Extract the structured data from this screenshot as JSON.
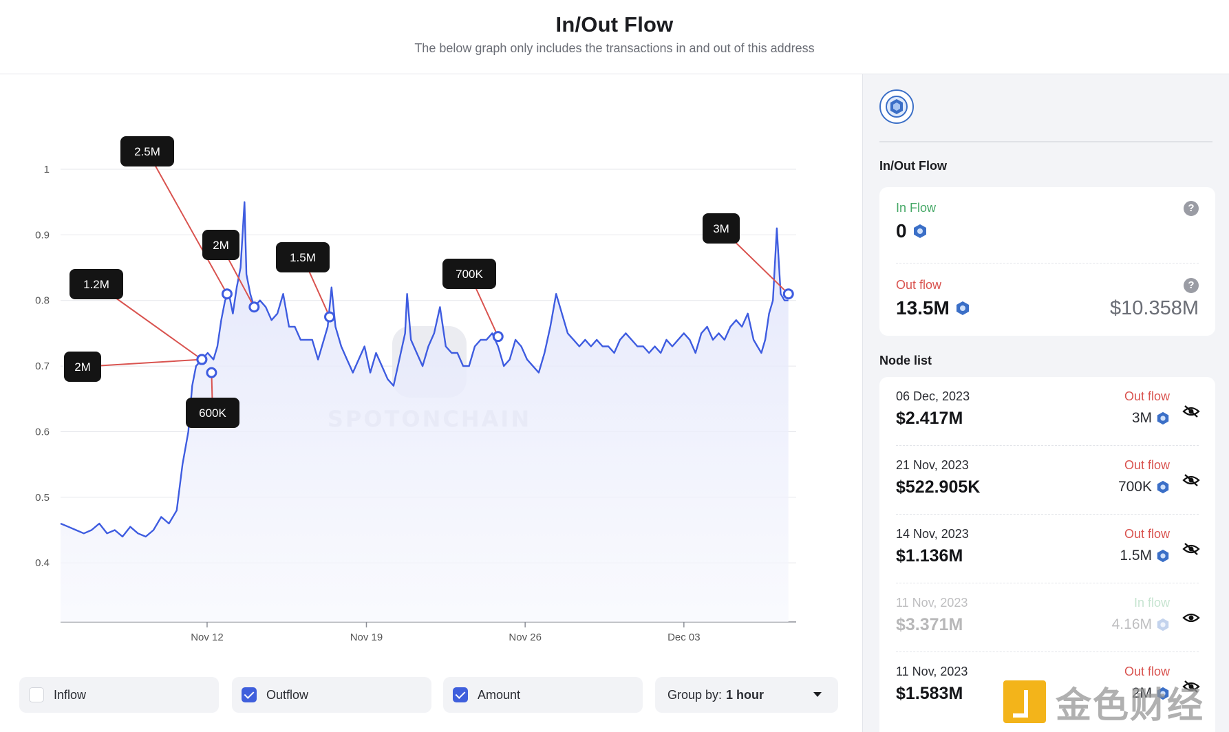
{
  "header": {
    "title": "In/Out Flow",
    "subtitle": "The below graph only includes the transactions in and out of this address"
  },
  "chart_data": {
    "type": "line",
    "yticks": [
      "1",
      "0.9",
      "0.8",
      "0.7",
      "0.6",
      "0.5",
      "0.4"
    ],
    "ylim": [
      0.31,
      1.0
    ],
    "xticks": [
      "Nov 12",
      "Nov 19",
      "Nov 26",
      "Dec 03"
    ],
    "watermark": "SPOTONCHAIN",
    "series": [
      {
        "points": [
          [
            0,
            0.46
          ],
          [
            0.4,
            0.455
          ],
          [
            0.8,
            0.45
          ],
          [
            1.2,
            0.445
          ],
          [
            1.6,
            0.45
          ],
          [
            2.0,
            0.46
          ],
          [
            2.4,
            0.445
          ],
          [
            2.8,
            0.45
          ],
          [
            3.2,
            0.44
          ],
          [
            3.6,
            0.455
          ],
          [
            4.0,
            0.445
          ],
          [
            4.4,
            0.44
          ],
          [
            4.8,
            0.45
          ],
          [
            5.2,
            0.47
          ],
          [
            5.6,
            0.46
          ],
          [
            6.0,
            0.48
          ],
          [
            6.3,
            0.55
          ],
          [
            6.6,
            0.6
          ],
          [
            6.8,
            0.67
          ],
          [
            7.0,
            0.7
          ],
          [
            7.3,
            0.71
          ],
          [
            7.6,
            0.72
          ],
          [
            7.9,
            0.71
          ],
          [
            8.1,
            0.73
          ],
          [
            8.3,
            0.77
          ],
          [
            8.5,
            0.8
          ],
          [
            8.7,
            0.81
          ],
          [
            8.9,
            0.78
          ],
          [
            9.1,
            0.82
          ],
          [
            9.3,
            0.85
          ],
          [
            9.5,
            0.95
          ],
          [
            9.6,
            0.84
          ],
          [
            9.8,
            0.81
          ],
          [
            10.0,
            0.79
          ],
          [
            10.3,
            0.8
          ],
          [
            10.6,
            0.79
          ],
          [
            10.9,
            0.77
          ],
          [
            11.2,
            0.78
          ],
          [
            11.5,
            0.81
          ],
          [
            11.8,
            0.76
          ],
          [
            12.1,
            0.76
          ],
          [
            12.4,
            0.74
          ],
          [
            12.7,
            0.74
          ],
          [
            13.0,
            0.74
          ],
          [
            13.3,
            0.71
          ],
          [
            13.5,
            0.73
          ],
          [
            13.8,
            0.76
          ],
          [
            14.0,
            0.82
          ],
          [
            14.2,
            0.76
          ],
          [
            14.5,
            0.73
          ],
          [
            14.8,
            0.71
          ],
          [
            15.1,
            0.69
          ],
          [
            15.4,
            0.71
          ],
          [
            15.7,
            0.73
          ],
          [
            16.0,
            0.69
          ],
          [
            16.3,
            0.72
          ],
          [
            16.6,
            0.7
          ],
          [
            16.9,
            0.68
          ],
          [
            17.2,
            0.67
          ],
          [
            17.5,
            0.71
          ],
          [
            17.8,
            0.75
          ],
          [
            17.9,
            0.81
          ],
          [
            18.1,
            0.74
          ],
          [
            18.4,
            0.72
          ],
          [
            18.7,
            0.7
          ],
          [
            19.0,
            0.73
          ],
          [
            19.3,
            0.75
          ],
          [
            19.6,
            0.79
          ],
          [
            19.9,
            0.73
          ],
          [
            20.2,
            0.72
          ],
          [
            20.5,
            0.72
          ],
          [
            20.8,
            0.7
          ],
          [
            21.1,
            0.7
          ],
          [
            21.4,
            0.73
          ],
          [
            21.7,
            0.74
          ],
          [
            22.0,
            0.74
          ],
          [
            22.3,
            0.75
          ],
          [
            22.6,
            0.73
          ],
          [
            22.9,
            0.7
          ],
          [
            23.2,
            0.71
          ],
          [
            23.5,
            0.74
          ],
          [
            23.8,
            0.73
          ],
          [
            24.1,
            0.71
          ],
          [
            24.4,
            0.7
          ],
          [
            24.7,
            0.69
          ],
          [
            25.0,
            0.72
          ],
          [
            25.3,
            0.76
          ],
          [
            25.6,
            0.81
          ],
          [
            25.9,
            0.78
          ],
          [
            26.2,
            0.75
          ],
          [
            26.5,
            0.74
          ],
          [
            26.8,
            0.73
          ],
          [
            27.1,
            0.74
          ],
          [
            27.4,
            0.73
          ],
          [
            27.7,
            0.74
          ],
          [
            28.0,
            0.73
          ],
          [
            28.3,
            0.73
          ],
          [
            28.6,
            0.72
          ],
          [
            28.9,
            0.74
          ],
          [
            29.2,
            0.75
          ],
          [
            29.5,
            0.74
          ],
          [
            29.8,
            0.73
          ],
          [
            30.1,
            0.73
          ],
          [
            30.4,
            0.72
          ],
          [
            30.7,
            0.73
          ],
          [
            31.0,
            0.72
          ],
          [
            31.3,
            0.74
          ],
          [
            31.6,
            0.73
          ],
          [
            31.9,
            0.74
          ],
          [
            32.2,
            0.75
          ],
          [
            32.5,
            0.74
          ],
          [
            32.8,
            0.72
          ],
          [
            33.1,
            0.75
          ],
          [
            33.4,
            0.76
          ],
          [
            33.7,
            0.74
          ],
          [
            34.0,
            0.75
          ],
          [
            34.3,
            0.74
          ],
          [
            34.6,
            0.76
          ],
          [
            34.9,
            0.77
          ],
          [
            35.2,
            0.76
          ],
          [
            35.5,
            0.78
          ],
          [
            35.8,
            0.74
          ],
          [
            36.0,
            0.73
          ],
          [
            36.2,
            0.72
          ],
          [
            36.4,
            0.74
          ],
          [
            36.6,
            0.78
          ],
          [
            36.8,
            0.8
          ],
          [
            37.0,
            0.91
          ],
          [
            37.2,
            0.81
          ],
          [
            37.4,
            0.8
          ],
          [
            37.6,
            0.8
          ]
        ]
      }
    ],
    "callouts": [
      {
        "label": "2.5M",
        "x": 8.6,
        "y": 0.81
      },
      {
        "label": "1.2M",
        "x": 7.3,
        "y": 0.71
      },
      {
        "label": "2M",
        "x": 7.3,
        "y": 0.71
      },
      {
        "label": "600K",
        "x": 7.8,
        "y": 0.69
      },
      {
        "label": "2M",
        "x": 10.0,
        "y": 0.79
      },
      {
        "label": "1.5M",
        "x": 13.9,
        "y": 0.775
      },
      {
        "label": "700K",
        "x": 22.6,
        "y": 0.745
      },
      {
        "label": "3M",
        "x": 37.6,
        "y": 0.81
      }
    ]
  },
  "controls": {
    "inflow": {
      "label": "Inflow",
      "checked": false
    },
    "outflow": {
      "label": "Outflow",
      "checked": true
    },
    "amount": {
      "label": "Amount",
      "checked": true
    },
    "group_by": {
      "label": "Group by:",
      "value": "1 hour"
    }
  },
  "side": {
    "title": "In/Out Flow",
    "in_flow": {
      "label": "In Flow",
      "value": "0"
    },
    "out_flow": {
      "label": "Out flow",
      "value": "13.5M",
      "usd": "$10.358M"
    },
    "node_list_title": "Node list",
    "nodes": [
      {
        "date": "06 Dec, 2023",
        "usd": "$2.417M",
        "kind": "Out flow",
        "amount": "3M",
        "hidden": true
      },
      {
        "date": "21 Nov, 2023",
        "usd": "$522.905K",
        "kind": "Out flow",
        "amount": "700K",
        "hidden": true
      },
      {
        "date": "14 Nov, 2023",
        "usd": "$1.136M",
        "kind": "Out flow",
        "amount": "1.5M",
        "hidden": true
      },
      {
        "date": "11 Nov, 2023",
        "usd": "$3.371M",
        "kind": "In flow",
        "amount": "4.16M",
        "hidden": false
      },
      {
        "date": "11 Nov, 2023",
        "usd": "$1.583M",
        "kind": "Out flow",
        "amount": "2M",
        "hidden": true
      }
    ]
  },
  "colors": {
    "line": "#3e5ce0",
    "inflow": "#45a866",
    "outflow": "#d9534f",
    "accent": "#3f5fdc"
  },
  "watermark_corner": "金色财经"
}
